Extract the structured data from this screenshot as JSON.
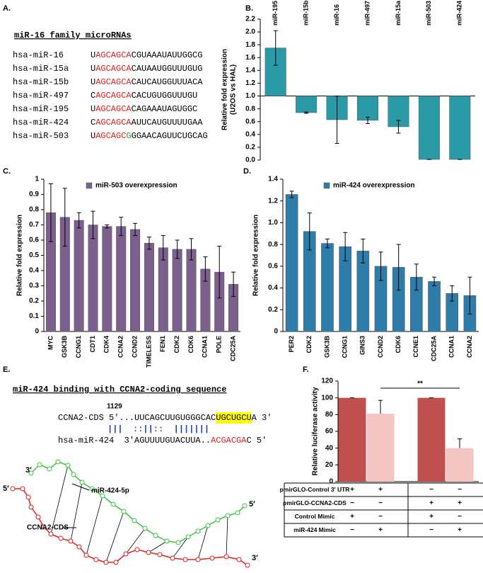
{
  "panel_a": {
    "label": "A.",
    "title": "miR-16 family microRNAs",
    "rows": [
      {
        "name": "hsa-miR-16",
        "parts": [
          {
            "text": "U"
          },
          {
            "text": "AGCAGCA",
            "color": "#e0201c"
          },
          {
            "text": "CGUAAAUAUUGGCG"
          }
        ]
      },
      {
        "name": "hsa-miR-15a",
        "parts": [
          {
            "text": "U"
          },
          {
            "text": "AGCAGCA",
            "color": "#e0201c"
          },
          {
            "text": "CAUAAUGGUUUGUG"
          }
        ]
      },
      {
        "name": "hsa-miR-15b",
        "parts": [
          {
            "text": "U"
          },
          {
            "text": "AGCAGCA",
            "color": "#e0201c"
          },
          {
            "text": "CAUCAUGGUUUACA"
          }
        ]
      },
      {
        "name": "hsa-miR-497",
        "parts": [
          {
            "text": "C"
          },
          {
            "text": "AGCAGCA",
            "color": "#e0201c"
          },
          {
            "text": "CACUGUGGUUUGU"
          }
        ]
      },
      {
        "name": "hsa-miR-195",
        "parts": [
          {
            "text": "U"
          },
          {
            "text": "AGCAGCA",
            "color": "#e0201c"
          },
          {
            "text": "CAGAAAUAGUGGC"
          }
        ]
      },
      {
        "name": "hsa-miR-424",
        "parts": [
          {
            "text": "C"
          },
          {
            "text": "AGCAGCA",
            "color": "#e0201c"
          },
          {
            "text": "AUUCAUGUUUUGAA"
          }
        ]
      },
      {
        "name": "hsa-miR-503",
        "parts": [
          {
            "text": "U"
          },
          {
            "text": "AGCAGC",
            "color": "#e0201c"
          },
          {
            "text": "G",
            "color": "#1f9e3a"
          },
          {
            "text": "GGAACAGUUCUGCAG"
          }
        ]
      }
    ]
  },
  "chart_data": [
    {
      "type": "bar",
      "label": "B.",
      "categories": [
        "miR-195",
        "miR-15b",
        "miR-16",
        "miR-497",
        "miR-15a",
        "miR-503",
        "miR-424"
      ],
      "values": [
        1.75,
        0.74,
        0.63,
        0.62,
        0.52,
        0.01,
        0.01
      ],
      "errors": [
        0.27,
        0.01,
        0.37,
        0.05,
        0.1,
        0,
        0
      ],
      "color": "#2a9aa6",
      "baseline": 1,
      "category_position": "top",
      "error_bars": "both",
      "ylabel": [
        "Relative fold expression",
        "(U2OS vs HAL)"
      ],
      "ylim": [
        0,
        2.2
      ],
      "yticks": [
        {
          "value": 0,
          "label": "0.0"
        },
        {
          "value": 0.2,
          "label": "0.2"
        },
        {
          "value": 0.4,
          "label": "0.4"
        },
        {
          "value": 0.6,
          "label": "0.6"
        },
        {
          "value": 0.8,
          "label": "0.8"
        },
        {
          "value": 1,
          "label": "1.0"
        },
        {
          "value": 1.2,
          "label": "1.2"
        },
        {
          "value": 1.4,
          "label": "1.4"
        },
        {
          "value": 1.6,
          "label": "1.6"
        },
        {
          "value": 1.8,
          "label": "1.8"
        },
        {
          "value": 2,
          "label": "2.0"
        },
        {
          "value": 2.2,
          "label": "2.2"
        }
      ]
    },
    {
      "type": "bar",
      "label": "C.",
      "categories": [
        "MYC",
        "GSK3B",
        "CCNG1",
        "CDT1",
        "CDK4",
        "CCNA2",
        "CCND2",
        "TIMELESS",
        "FEN1",
        "CDK2",
        "CDK6",
        "CCNA1",
        "POLE",
        "CDC25A"
      ],
      "series": [
        {
          "name": "miR-503 overexpression",
          "color": "#7b5f8c",
          "values": [
            0.78,
            0.75,
            0.73,
            0.7,
            0.69,
            0.69,
            0.67,
            0.58,
            0.55,
            0.54,
            0.54,
            0.41,
            0.39,
            0.31
          ],
          "errors": [
            0.19,
            0.19,
            0.05,
            0.09,
            0.01,
            0.06,
            0.04,
            0.04,
            0.08,
            0.06,
            0.07,
            0.08,
            0.17,
            0.08
          ]
        }
      ],
      "category_position": "bottom",
      "error_bars": "both",
      "ylabel": [
        "Relative fold expression"
      ],
      "ylim": [
        0,
        1
      ],
      "yticks": [
        0,
        0.1,
        0.2,
        0.3,
        0.4,
        0.5,
        0.6,
        0.7,
        0.8,
        0.9,
        1
      ]
    },
    {
      "type": "bar",
      "label": "D.",
      "categories": [
        "PER2",
        "CDK2",
        "GSK3B",
        "CCNG1",
        "GINS3",
        "CCND2",
        "CDK6",
        "CCNE1",
        "CDC25A",
        "CCNA1",
        "CCNA2"
      ],
      "series": [
        {
          "name": "miR-424 overexpression",
          "color": "#2e7ca9",
          "values": [
            1.26,
            0.92,
            0.81,
            0.78,
            0.74,
            0.6,
            0.59,
            0.5,
            0.46,
            0.35,
            0.33
          ],
          "errors": [
            0.03,
            0.17,
            0.04,
            0.13,
            0.11,
            0.13,
            0.21,
            0.12,
            0.04,
            0.07,
            0.17
          ]
        }
      ],
      "category_position": "bottom",
      "error_bars": "both",
      "ylabel": [
        "Relative fold expression"
      ],
      "ylim": [
        0,
        1.4
      ],
      "yticks": [
        0,
        0.2,
        0.4,
        0.6,
        0.8,
        {
          "value": 1,
          "label": "1.0"
        },
        1.2,
        1.4
      ]
    },
    {
      "type": "bar",
      "label": "F.",
      "values": [
        100,
        81,
        100,
        40
      ],
      "errors": [
        0,
        16,
        0,
        11
      ],
      "colors": [
        "#c0504d",
        "#f4c6c2",
        "#c0504d",
        "#f4c6c2"
      ],
      "error_bars": "up",
      "annotation": "**",
      "ylabel": [
        "Relative luciferase activity"
      ],
      "ylim": [
        0,
        120
      ],
      "yticks": [
        0,
        20,
        40,
        60,
        80,
        100,
        120
      ],
      "table": [
        {
          "label": "pmirGLO-Control 3′ UTR",
          "cells": [
            "+",
            "+",
            "−",
            "−"
          ]
        },
        {
          "label": "pmirGLO-CCNA2-CDS",
          "cells": [
            "−",
            "−",
            "+",
            "+"
          ]
        },
        {
          "label": "Control Mimic",
          "cells": [
            "+",
            "−",
            "+",
            "−"
          ]
        },
        {
          "label": "miR-424 Mimic",
          "cells": [
            "−",
            "+",
            "−",
            "+"
          ]
        }
      ]
    }
  ],
  "panel_e": {
    "label": "E.",
    "title": "miR-424 binding with CCNA2-coding sequence",
    "position": "1129",
    "target": [
      {
        "text": "CCNA2-CDS 5′...UUCAGCUUGUGGGCAC"
      },
      {
        "text": "UGCUGCU",
        "highlight": "#ffff00"
      },
      {
        "text": "A 3′"
      }
    ],
    "pairing": "|||  ::||::  |||||||",
    "mirna": [
      {
        "text": "hsa-miR-424  3′AGUUUUGUACUUA.."
      },
      {
        "text": "ACGACGA",
        "color": "#e0201c"
      },
      {
        "text": "C 5′"
      }
    ],
    "structure_labels": {
      "mirna_3p": "3′",
      "target_5p": "5′",
      "mirna_5p": "5′",
      "target_3p": "3′",
      "mirna_name": "miR-424-5p",
      "target_name": "CCNA2-CDS"
    }
  }
}
